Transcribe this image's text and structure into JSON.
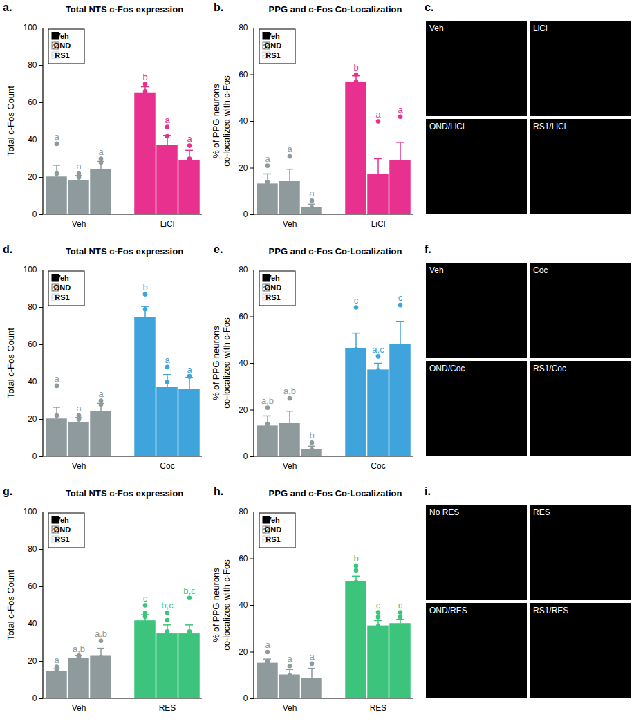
{
  "chart_data": [
    {
      "type": "bar",
      "annotations": [
        "a."
      ],
      "title": "Total NTS c-Fos expression",
      "y_label": "Total c-Fos Count",
      "categories": [
        "Veh",
        "LiCl"
      ],
      "ylim": [
        0,
        100
      ],
      "yticks": [
        0,
        20,
        40,
        60,
        80,
        100
      ],
      "legend": "top-left",
      "series": [
        {
          "name": "Veh",
          "color": "#000000",
          "colors": [
            "#8f9a9d",
            "#e8308f"
          ],
          "values": [
            20,
            65
          ],
          "errors": [
            6.5,
            3.5
          ],
          "points": [
            [
              38,
              22,
              13,
              9
            ],
            [
              70,
              66,
              58
            ]
          ],
          "annotations": [
            "a",
            "b"
          ]
        },
        {
          "name": "OND",
          "color": "#7f7f7f",
          "colors": [
            "#8f9a9d",
            "#e8308f"
          ],
          "values": [
            18,
            37
          ],
          "errors": [
            3,
            5.5
          ],
          "points": [
            [
              22,
              20,
              12
            ],
            [
              47,
              42,
              30,
              28
            ]
          ],
          "annotations": [
            "a",
            "a"
          ]
        },
        {
          "name": "RS1",
          "color": "#cfcfcf",
          "colors": [
            "#8f9a9d",
            "#e8308f"
          ],
          "values": [
            24,
            29
          ],
          "errors": [
            4.5,
            5.5
          ],
          "points": [
            [
              30,
              28,
              15
            ],
            [
              37,
              30,
              19
            ]
          ],
          "annotations": [
            "a",
            "a"
          ]
        }
      ]
    },
    {
      "type": "bar",
      "annotations": [
        "b."
      ],
      "title": "PPG and c-Fos Co-Localization",
      "y_label": "% of PPG neurons co-localized with c-Fos",
      "categories": [
        "Veh",
        "LiCl"
      ],
      "ylim": [
        0,
        80
      ],
      "yticks": [
        0,
        20,
        40,
        60,
        80
      ],
      "legend": "top-left",
      "series": [
        {
          "name": "Veh",
          "color": "#000000",
          "colors": [
            "#8f9a9d",
            "#e8308f"
          ],
          "values": [
            13,
            56.5
          ],
          "errors": [
            4.5,
            3
          ],
          "points": [
            [
              21,
              14,
              12,
              5
            ],
            [
              60,
              57,
              52
            ]
          ],
          "annotations": [
            "a",
            "b"
          ]
        },
        {
          "name": "OND",
          "color": "#7f7f7f",
          "colors": [
            "#8f9a9d",
            "#e8308f"
          ],
          "values": [
            14,
            17
          ],
          "errors": [
            5.5,
            7
          ],
          "points": [
            [
              25,
              12,
              5
            ],
            [
              40,
              15,
              9,
              4
            ]
          ],
          "annotations": [
            "a",
            "a"
          ]
        },
        {
          "name": "RS1",
          "color": "#cfcfcf",
          "colors": [
            "#8f9a9d",
            "#e8308f"
          ],
          "values": [
            3,
            23
          ],
          "errors": [
            1.5,
            8
          ],
          "points": [
            [
              6,
              3,
              1
            ],
            [
              42,
              20,
              7
            ]
          ],
          "annotations": [
            "a",
            "a"
          ]
        }
      ]
    },
    {
      "type": "image",
      "annotations": [
        "c."
      ],
      "labels": [
        "Veh",
        "LiCl",
        "OND/LiCl",
        "RS1/LiCl"
      ]
    },
    {
      "type": "bar",
      "annotations": [
        "d."
      ],
      "title": "Total NTS c-Fos expression",
      "y_label": "Total c-Fos Count",
      "categories": [
        "Veh",
        "Coc"
      ],
      "ylim": [
        0,
        100
      ],
      "yticks": [
        0,
        20,
        40,
        60,
        80,
        100
      ],
      "legend": "top-left",
      "series": [
        {
          "name": "Veh",
          "color": "#000000",
          "colors": [
            "#8f9a9d",
            "#3fa4dc"
          ],
          "values": [
            20,
            74.5
          ],
          "errors": [
            6.5,
            6
          ],
          "points": [
            [
              38,
              22,
              13,
              9
            ],
            [
              87,
              79,
              70,
              62
            ]
          ],
          "annotations": [
            "a",
            "b"
          ]
        },
        {
          "name": "OND",
          "color": "#7f7f7f",
          "colors": [
            "#8f9a9d",
            "#3fa4dc"
          ],
          "values": [
            18,
            37
          ],
          "errors": [
            3,
            7
          ],
          "points": [
            [
              22,
              20,
              12
            ],
            [
              48,
              40,
              23
            ]
          ],
          "annotations": [
            "a",
            "a"
          ]
        },
        {
          "name": "RS1",
          "color": "#cfcfcf",
          "colors": [
            "#8f9a9d",
            "#3fa4dc"
          ],
          "values": [
            24,
            36
          ],
          "errors": [
            4.5,
            6.5
          ],
          "points": [
            [
              30,
              28,
              15
            ],
            [
              43,
              43,
              23
            ]
          ],
          "annotations": [
            "a",
            "a"
          ]
        }
      ]
    },
    {
      "type": "bar",
      "annotations": [
        "e."
      ],
      "title": "PPG and c-Fos Co-Localization",
      "y_label": "% of PPG neurons co-localized with c-Fos",
      "categories": [
        "Veh",
        "Coc"
      ],
      "ylim": [
        0,
        80
      ],
      "yticks": [
        0,
        20,
        40,
        60,
        80
      ],
      "legend": "top-left",
      "series": [
        {
          "name": "Veh",
          "color": "#000000",
          "colors": [
            "#8f9a9d",
            "#3fa4dc"
          ],
          "values": [
            13,
            46
          ],
          "errors": [
            4.5,
            7
          ],
          "points": [
            [
              21,
              14,
              12,
              5
            ],
            [
              64,
              46,
              40,
              35
            ]
          ],
          "annotations": [
            "a,b",
            "c"
          ]
        },
        {
          "name": "OND",
          "color": "#7f7f7f",
          "colors": [
            "#8f9a9d",
            "#3fa4dc"
          ],
          "values": [
            14,
            37
          ],
          "errors": [
            5.5,
            3
          ],
          "points": [
            [
              25,
              12,
              5
            ],
            [
              43,
              37,
              32
            ]
          ],
          "annotations": [
            "a,b",
            "a,c"
          ]
        },
        {
          "name": "RS1",
          "color": "#cfcfcf",
          "colors": [
            "#8f9a9d",
            "#3fa4dc"
          ],
          "values": [
            3,
            48
          ],
          "errors": [
            1.5,
            10
          ],
          "points": [
            [
              6,
              3,
              1
            ],
            [
              65,
              47,
              31
            ]
          ],
          "annotations": [
            "b",
            "c"
          ]
        }
      ]
    },
    {
      "type": "image",
      "annotations": [
        "f."
      ],
      "labels": [
        "Veh",
        "Coc",
        "OND/Coc",
        "RS1/Coc"
      ]
    },
    {
      "type": "bar",
      "annotations": [
        "g."
      ],
      "title": "Total NTS c-Fos expression",
      "y_label": "Total c-Fos Count",
      "categories": [
        "Veh",
        "RES"
      ],
      "ylim": [
        0,
        100
      ],
      "yticks": [
        0,
        20,
        40,
        60,
        80,
        100
      ],
      "legend": "top-left",
      "series": [
        {
          "name": "Veh",
          "color": "#000000",
          "colors": [
            "#8f9a9d",
            "#3cc47c"
          ],
          "values": [
            14.5,
            41.5
          ],
          "errors": [
            1.5,
            3.5
          ],
          "points": [
            [
              17,
              15,
              15,
              13,
              12
            ],
            [
              50,
              46,
              44,
              40,
              36,
              33
            ]
          ],
          "annotations": [
            "a",
            "c"
          ]
        },
        {
          "name": "OND",
          "color": "#7f7f7f",
          "colors": [
            "#8f9a9d",
            "#3cc47c"
          ],
          "values": [
            21.5,
            34.5
          ],
          "errors": [
            1.5,
            5
          ],
          "points": [
            [
              23,
              22,
              20
            ],
            [
              46,
              42,
              36,
              30,
              20
            ]
          ],
          "annotations": [
            "a,b",
            "b,c"
          ]
        },
        {
          "name": "RS1",
          "color": "#cfcfcf",
          "colors": [
            "#8f9a9d",
            "#3cc47c"
          ],
          "values": [
            22.5,
            34.5
          ],
          "errors": [
            4.5,
            5
          ],
          "points": [
            [
              31,
              22,
              14
            ],
            [
              54,
              36,
              31,
              28,
              25
            ]
          ],
          "annotations": [
            "a,b",
            "b,c"
          ]
        }
      ]
    },
    {
      "type": "bar",
      "annotations": [
        "h."
      ],
      "title": "PPG and c-Fos Co-Localization",
      "y_label": "% of PPG neurons co-localized with c-Fos",
      "categories": [
        "Veh",
        "RES"
      ],
      "ylim": [
        0,
        80
      ],
      "yticks": [
        0,
        20,
        40,
        60,
        80
      ],
      "legend": "top-left",
      "series": [
        {
          "name": "Veh",
          "color": "#000000",
          "colors": [
            "#8f9a9d",
            "#3cc47c"
          ],
          "values": [
            15,
            50
          ],
          "errors": [
            2,
            2.5
          ],
          "points": [
            [
              20,
              16,
              15,
              13,
              11
            ],
            [
              57,
              55,
              50,
              48,
              46,
              44
            ]
          ],
          "annotations": [
            "a",
            "b"
          ]
        },
        {
          "name": "OND",
          "color": "#7f7f7f",
          "colors": [
            "#8f9a9d",
            "#3cc47c"
          ],
          "values": [
            10,
            31
          ],
          "errors": [
            2.5,
            2.5
          ],
          "points": [
            [
              14,
              10,
              6
            ],
            [
              37,
              35,
              31,
              27,
              26
            ]
          ],
          "annotations": [
            "a",
            "c"
          ]
        },
        {
          "name": "RS1",
          "color": "#cfcfcf",
          "colors": [
            "#8f9a9d",
            "#3cc47c"
          ],
          "values": [
            8.5,
            32
          ],
          "errors": [
            4.5,
            2
          ],
          "points": [
            [
              15,
              8,
              2
            ],
            [
              37,
              35,
              31,
              29,
              27
            ]
          ],
          "annotations": [
            "a",
            "c"
          ]
        }
      ]
    },
    {
      "type": "image",
      "annotations": [
        "i."
      ],
      "labels": [
        "No RES",
        "RES",
        "OND/RES",
        "RS1/RES"
      ]
    }
  ]
}
